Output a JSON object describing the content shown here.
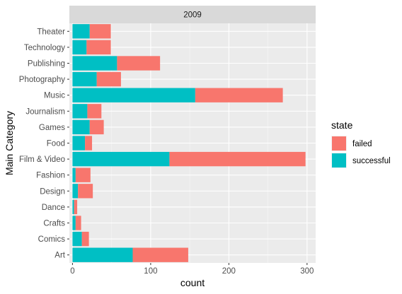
{
  "chart_data": {
    "type": "bar",
    "orientation": "horizontal",
    "stacked": true,
    "facet": "2009",
    "categories": [
      "Art",
      "Comics",
      "Crafts",
      "Dance",
      "Design",
      "Fashion",
      "Film & Video",
      "Food",
      "Games",
      "Journalism",
      "Music",
      "Photography",
      "Publishing",
      "Technology",
      "Theater"
    ],
    "series": [
      {
        "name": "successful",
        "color": "#00BFC4",
        "values": [
          77,
          12,
          4,
          2,
          7,
          4,
          124,
          16,
          22,
          19,
          157,
          31,
          57,
          18,
          22
        ]
      },
      {
        "name": "failed",
        "color": "#F8766D",
        "values": [
          71,
          9,
          7,
          4,
          19,
          19,
          174,
          9,
          18,
          18,
          112,
          31,
          55,
          31,
          27
        ]
      }
    ],
    "xlabel": "count",
    "ylabel": "Main Category",
    "xlim": [
      -4,
      311
    ],
    "xticks": [
      0,
      100,
      200,
      300
    ],
    "grid": true,
    "legend": {
      "title": "state",
      "position": "right",
      "entries": [
        "failed",
        "successful"
      ]
    }
  }
}
